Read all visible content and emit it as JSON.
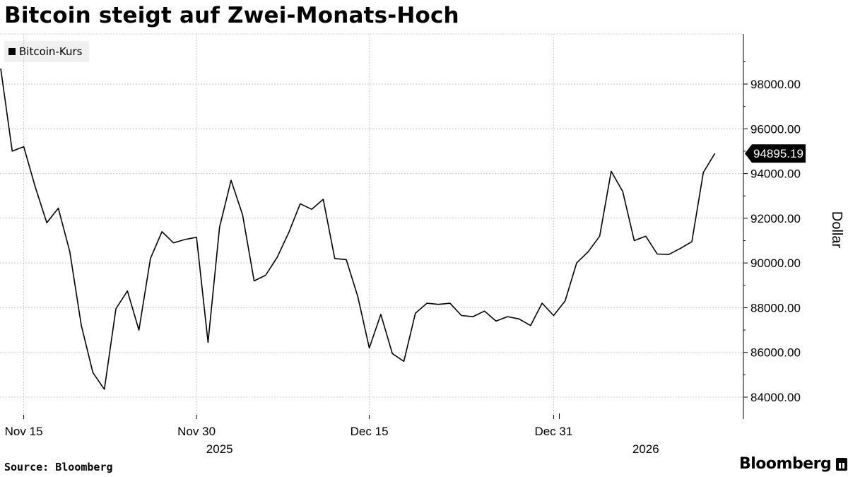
{
  "title": "Bitcoin steigt auf Zwei-Monats-Hoch",
  "legend_label": "Bitcoin-Kurs",
  "source": "Source: Bloomberg",
  "brand": "Bloomberg",
  "chart_data": {
    "type": "line",
    "title": "Bitcoin steigt auf Zwei-Monats-Hoch",
    "ylabel": "Dollar",
    "xlabel": "",
    "ylim": [
      83000,
      100000
    ],
    "yticks": [
      84000,
      86000,
      88000,
      90000,
      92000,
      94000,
      96000,
      98000
    ],
    "ytick_labels": [
      "84000.00",
      "86000.00",
      "88000.00",
      "90000.00",
      "92000.00",
      "94000.00",
      "96000.00",
      "98000.00"
    ],
    "xticks": [
      {
        "date": "2025-11-15",
        "label": "Nov 15"
      },
      {
        "date": "2025-11-30",
        "label": "Nov 30"
      },
      {
        "date": "2025-12-15",
        "label": "Dec 15"
      },
      {
        "date": "2025-12-31",
        "label": "Dec 31"
      }
    ],
    "year_labels": [
      {
        "date": "2025-12-02",
        "label": "2025"
      },
      {
        "date": "2026-01-08",
        "label": "2026"
      }
    ],
    "grid": true,
    "legend_position": "top-left",
    "line_color": "#000000",
    "last_value_label": "94895.19",
    "series": [
      {
        "name": "Bitcoin-Kurs",
        "x": [
          "2025-11-13",
          "2025-11-14",
          "2025-11-15",
          "2025-11-16",
          "2025-11-17",
          "2025-11-18",
          "2025-11-19",
          "2025-11-20",
          "2025-11-21",
          "2025-11-22",
          "2025-11-23",
          "2025-11-24",
          "2025-11-25",
          "2025-11-26",
          "2025-11-27",
          "2025-11-28",
          "2025-11-29",
          "2025-11-30",
          "2025-12-01",
          "2025-12-02",
          "2025-12-03",
          "2025-12-04",
          "2025-12-05",
          "2025-12-06",
          "2025-12-07",
          "2025-12-08",
          "2025-12-09",
          "2025-12-10",
          "2025-12-11",
          "2025-12-12",
          "2025-12-13",
          "2025-12-14",
          "2025-12-15",
          "2025-12-16",
          "2025-12-17",
          "2025-12-18",
          "2025-12-19",
          "2025-12-20",
          "2025-12-21",
          "2025-12-22",
          "2025-12-23",
          "2025-12-24",
          "2025-12-25",
          "2025-12-26",
          "2025-12-27",
          "2025-12-28",
          "2025-12-29",
          "2025-12-30",
          "2025-12-31",
          "2026-01-01",
          "2026-01-02",
          "2026-01-03",
          "2026-01-04",
          "2026-01-05",
          "2026-01-06",
          "2026-01-07",
          "2026-01-08",
          "2026-01-09",
          "2026-01-10",
          "2026-01-11",
          "2026-01-12",
          "2026-01-13",
          "2026-01-14"
        ],
        "values": [
          98700,
          95000,
          95200,
          93400,
          91800,
          92450,
          90500,
          87200,
          85100,
          84350,
          87950,
          88750,
          87000,
          90200,
          91400,
          90900,
          91050,
          91150,
          86450,
          91600,
          93700,
          92150,
          89200,
          89450,
          90250,
          91350,
          92650,
          92400,
          92850,
          90200,
          90150,
          88500,
          86200,
          87700,
          85950,
          85600,
          87750,
          88200,
          88150,
          88200,
          87650,
          87600,
          87850,
          87400,
          87600,
          87500,
          87200,
          88200,
          87650,
          88300,
          90000,
          90500,
          91200,
          94100,
          93200,
          91000,
          91200,
          90400,
          90380,
          90650,
          90950,
          94050,
          94895.19
        ]
      }
    ]
  }
}
